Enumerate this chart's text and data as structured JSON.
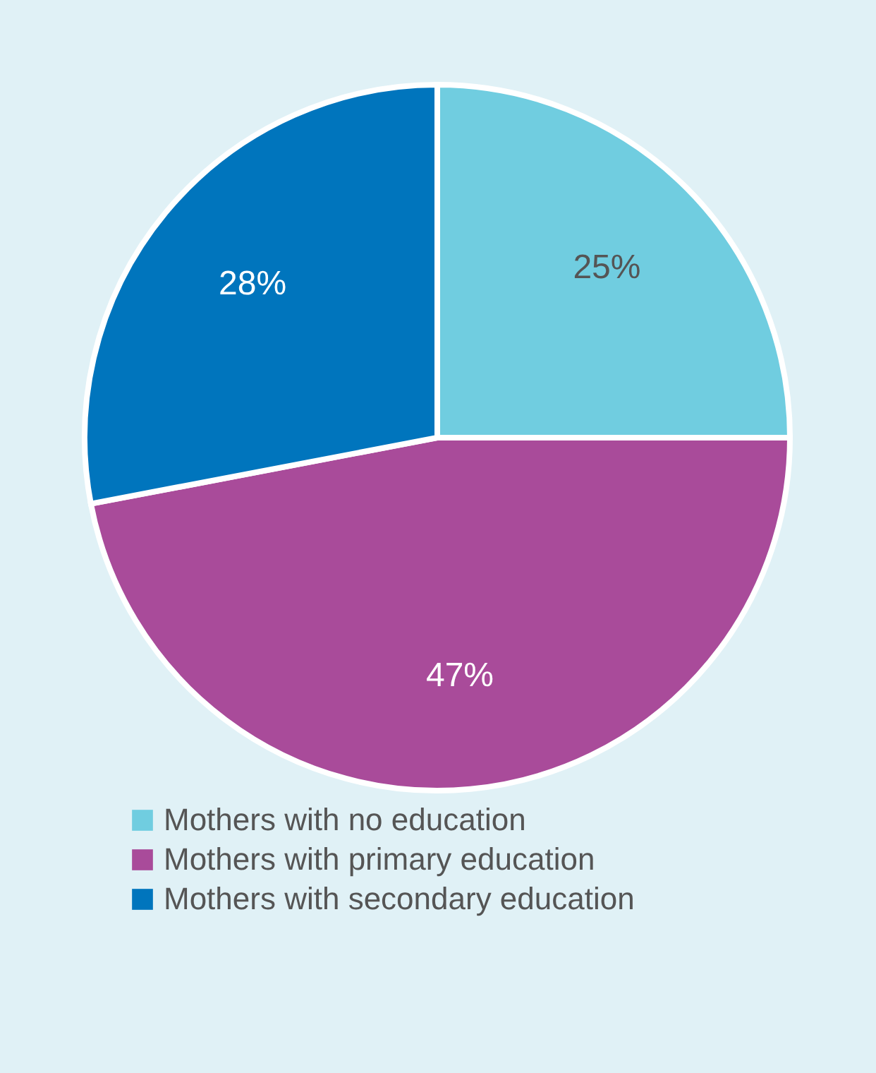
{
  "chart_data": {
    "type": "pie",
    "categories": [
      "Mothers with no education",
      "Mothers with primary education",
      "Mothers with secondary education"
    ],
    "values": [
      25,
      47,
      28
    ],
    "colors": [
      "#70cde0",
      "#a94b9a",
      "#0075bd"
    ],
    "value_labels": [
      "25%",
      "47%",
      "28%"
    ],
    "legend": "bottom"
  }
}
